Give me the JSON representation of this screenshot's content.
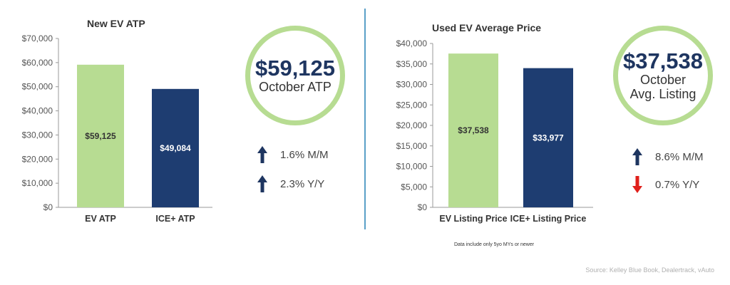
{
  "chart_data": [
    {
      "type": "bar",
      "title": "New EV ATP",
      "categories": [
        "EV ATP",
        "ICE+ ATP"
      ],
      "values": [
        59125,
        49084
      ],
      "data_labels": [
        "$59,125",
        "$49,084"
      ],
      "colors": [
        "#b7dc92",
        "#1e3d71"
      ],
      "ylim": [
        0,
        70000
      ],
      "yticks": [
        0,
        10000,
        20000,
        30000,
        40000,
        50000,
        60000,
        70000
      ],
      "ytick_labels": [
        "$0",
        "$10,000",
        "$20,000",
        "$30,000",
        "$40,000",
        "$50,000",
        "$60,000",
        "$70,000"
      ],
      "grid": false
    },
    {
      "type": "bar",
      "title": "Used EV Average Price",
      "categories": [
        "EV Listing Price",
        "ICE+ Listing Price"
      ],
      "values": [
        37538,
        33977
      ],
      "data_labels": [
        "$37,538",
        "$33,977"
      ],
      "colors": [
        "#b7dc92",
        "#1e3d71"
      ],
      "ylim": [
        0,
        40000
      ],
      "yticks": [
        0,
        5000,
        10000,
        15000,
        20000,
        25000,
        30000,
        35000,
        40000
      ],
      "ytick_labels": [
        "$0",
        "$5,000",
        "$10,000",
        "$15,000",
        "$20,000",
        "$25,000",
        "$30,000",
        "$35,000",
        "$40,000"
      ],
      "grid": false
    }
  ],
  "summaries": [
    {
      "big": "$59,125",
      "sub": [
        "October ATP"
      ],
      "stats": [
        {
          "direction": "up",
          "color": "#1e3560",
          "label": "1.6% M/M"
        },
        {
          "direction": "up",
          "color": "#1e3560",
          "label": "2.3% Y/Y"
        }
      ]
    },
    {
      "big": "$37,538",
      "sub": [
        "October",
        "Avg. Listing"
      ],
      "stats": [
        {
          "direction": "up",
          "color": "#1e3560",
          "label": "8.6% M/M"
        },
        {
          "direction": "down",
          "color": "#e0201b",
          "label": "0.7% Y/Y"
        }
      ]
    }
  ],
  "note": "Data include only 5yo MYs or newer",
  "source": "Source: Kelley Blue Book, Dealertrack, vAuto"
}
